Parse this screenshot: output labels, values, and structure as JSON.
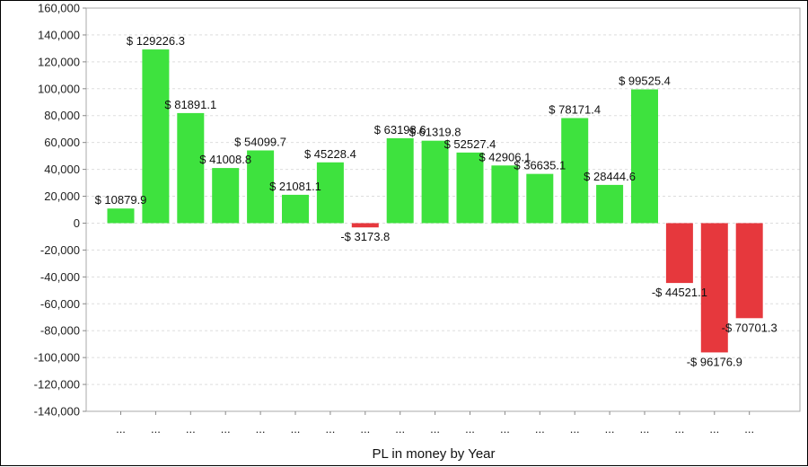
{
  "chart_data": {
    "type": "bar",
    "title": "",
    "xlabel": "PL in money by Year",
    "ylabel": "",
    "ylim": [
      -140000,
      160000
    ],
    "y_ticks": [
      160000,
      140000,
      120000,
      100000,
      80000,
      60000,
      40000,
      20000,
      0,
      -20000,
      -40000,
      -60000,
      -80000,
      -100000,
      -120000,
      -140000
    ],
    "y_tick_labels": [
      "160,000",
      "140,000",
      "120,000",
      "100,000",
      "80,000",
      "60,000",
      "40,000",
      "20,000",
      "0",
      "-20,000",
      "-40,000",
      "-60,000",
      "-80,000",
      "-100,000",
      "-120,000",
      "-140,000"
    ],
    "grid": true,
    "categories": [
      "...",
      "...",
      "...",
      "...",
      "...",
      "...",
      "...",
      "...",
      "...",
      "...",
      "...",
      "...",
      "...",
      "...",
      "...",
      "...",
      "...",
      "...",
      "..."
    ],
    "values": [
      10879.9,
      129226.3,
      81891.1,
      41008.8,
      54099.7,
      21081.1,
      45228.4,
      -3173.8,
      63198.6,
      61319.8,
      52527.4,
      42906.1,
      36635.1,
      78171.4,
      28444.6,
      99525.4,
      -44521.1,
      -96176.9,
      -70701.3
    ],
    "data_labels": [
      "$ 10879.9",
      "$ 129226.3",
      "$ 81891.1",
      "$ 41008.8",
      "$ 54099.7",
      "$ 21081.1",
      "$ 45228.4",
      "-$ 3173.8",
      "$ 63198.6",
      "$ 61319.8",
      "$ 52527.4",
      "$ 42906.1",
      "$ 36635.1",
      "$ 78171.4",
      "$ 28444.6",
      "$ 99525.4",
      "-$ 44521.1",
      "-$ 96176.9",
      "-$ 70701.3"
    ],
    "colors": {
      "positive": "#3ee23e",
      "negative": "#e6383d",
      "grid": "#dddddd",
      "plot_border": "#aaaaaa"
    }
  }
}
